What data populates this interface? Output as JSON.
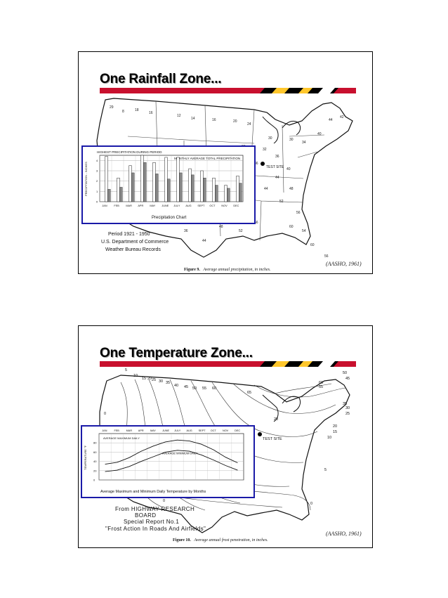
{
  "slides": [
    {
      "title": "One Rainfall Zone...",
      "citation": "(AASHO, 1961)",
      "figure_caption": {
        "label": "Figure 9.",
        "text": "Average annual precipitation, in inches."
      },
      "map_label_test_site": "TEST SITE",
      "map_notes": [
        "Period 1921 - 1950",
        "U.S. Department of Commerce",
        "Weather Bureau Records"
      ],
      "inset": {
        "title": "Precipitation Chart",
        "legend_left": "HIGHEST PRECIPITATION DURING PERIOD",
        "legend_right": "MONTHLY AVERAGE TOTAL PRECIPITATION",
        "ylabel": "PRECIPITATION - INCHES",
        "chart_data": {
          "type": "bar",
          "categories": [
            "JAN",
            "FEB",
            "MAR",
            "APR",
            "MAY",
            "JUNE",
            "JULY",
            "AUG",
            "SEPT",
            "OCT",
            "NOV",
            "DEC"
          ],
          "series": [
            {
              "name": "HIGHEST PRECIPITATION DURING PERIOD",
              "values": [
                4.4,
                2.3,
                3.5,
                4.5,
                3.8,
                4.3,
                4.3,
                3.2,
                3.0,
                2.3,
                1.6,
                2.5
              ]
            },
            {
              "name": "MONTHLY AVERAGE TOTAL PRECIPITATION",
              "values": [
                1.2,
                1.4,
                2.8,
                3.8,
                2.7,
                2.2,
                2.8,
                2.6,
                2.3,
                1.6,
                1.3,
                1.8
              ]
            }
          ],
          "yticks": [
            "0",
            "1",
            "2",
            "3",
            "4"
          ],
          "ylim": [
            0,
            4.5
          ],
          "grid": true
        }
      },
      "stripe_colors": [
        "#c8102e",
        "#000000",
        "#ffc72c",
        "#ffffff"
      ]
    },
    {
      "title": "One Temperature Zone...",
      "citation": "(AASHO, 1961)",
      "figure_caption": {
        "label": "Figure 10.",
        "text": "Average annual frost penetration, in inches."
      },
      "map_label_test_site": "TEST SITE",
      "map_notes": [
        "From HIGHWAY RESEARCH",
        "BOARD",
        "Special Report No.1",
        "\"Frost Action In Roads And Airfields\""
      ],
      "contour_labels": [
        "5",
        "10",
        "15",
        "20",
        "25",
        "30",
        "35",
        "40",
        "45",
        "50",
        "55",
        "60",
        "65",
        "60",
        "55",
        "50",
        "45",
        "35",
        "30",
        "25",
        "20",
        "15",
        "10",
        "5",
        "0",
        "0",
        "0",
        "0",
        "20"
      ],
      "inset": {
        "title": "Average Maximum and Minimum Daily Temperature by Months",
        "legend_max": "AVERAGE MAXIMUM DAILY",
        "legend_min": "AVERAGE MINIMUM DAILY",
        "ylabel": "TEMPERATURE °F",
        "chart_data": {
          "type": "line",
          "categories": [
            "JAN",
            "FEB",
            "MAR",
            "APR",
            "MAY",
            "JUNE",
            "JULY",
            "AUG",
            "SEPT",
            "OCT",
            "NOV",
            "DEC"
          ],
          "series": [
            {
              "name": "AVERAGE MAXIMUM DAILY",
              "values": [
                34,
                38,
                48,
                62,
                73,
                82,
                86,
                84,
                77,
                65,
                49,
                37
              ]
            },
            {
              "name": "AVERAGE MINIMUM DAILY",
              "values": [
                18,
                21,
                29,
                40,
                50,
                60,
                64,
                62,
                54,
                43,
                31,
                21
              ]
            }
          ],
          "yticks": [
            "0",
            "20",
            "40",
            "60",
            "80"
          ],
          "ylim": [
            0,
            100
          ],
          "grid": true
        }
      }
    }
  ]
}
